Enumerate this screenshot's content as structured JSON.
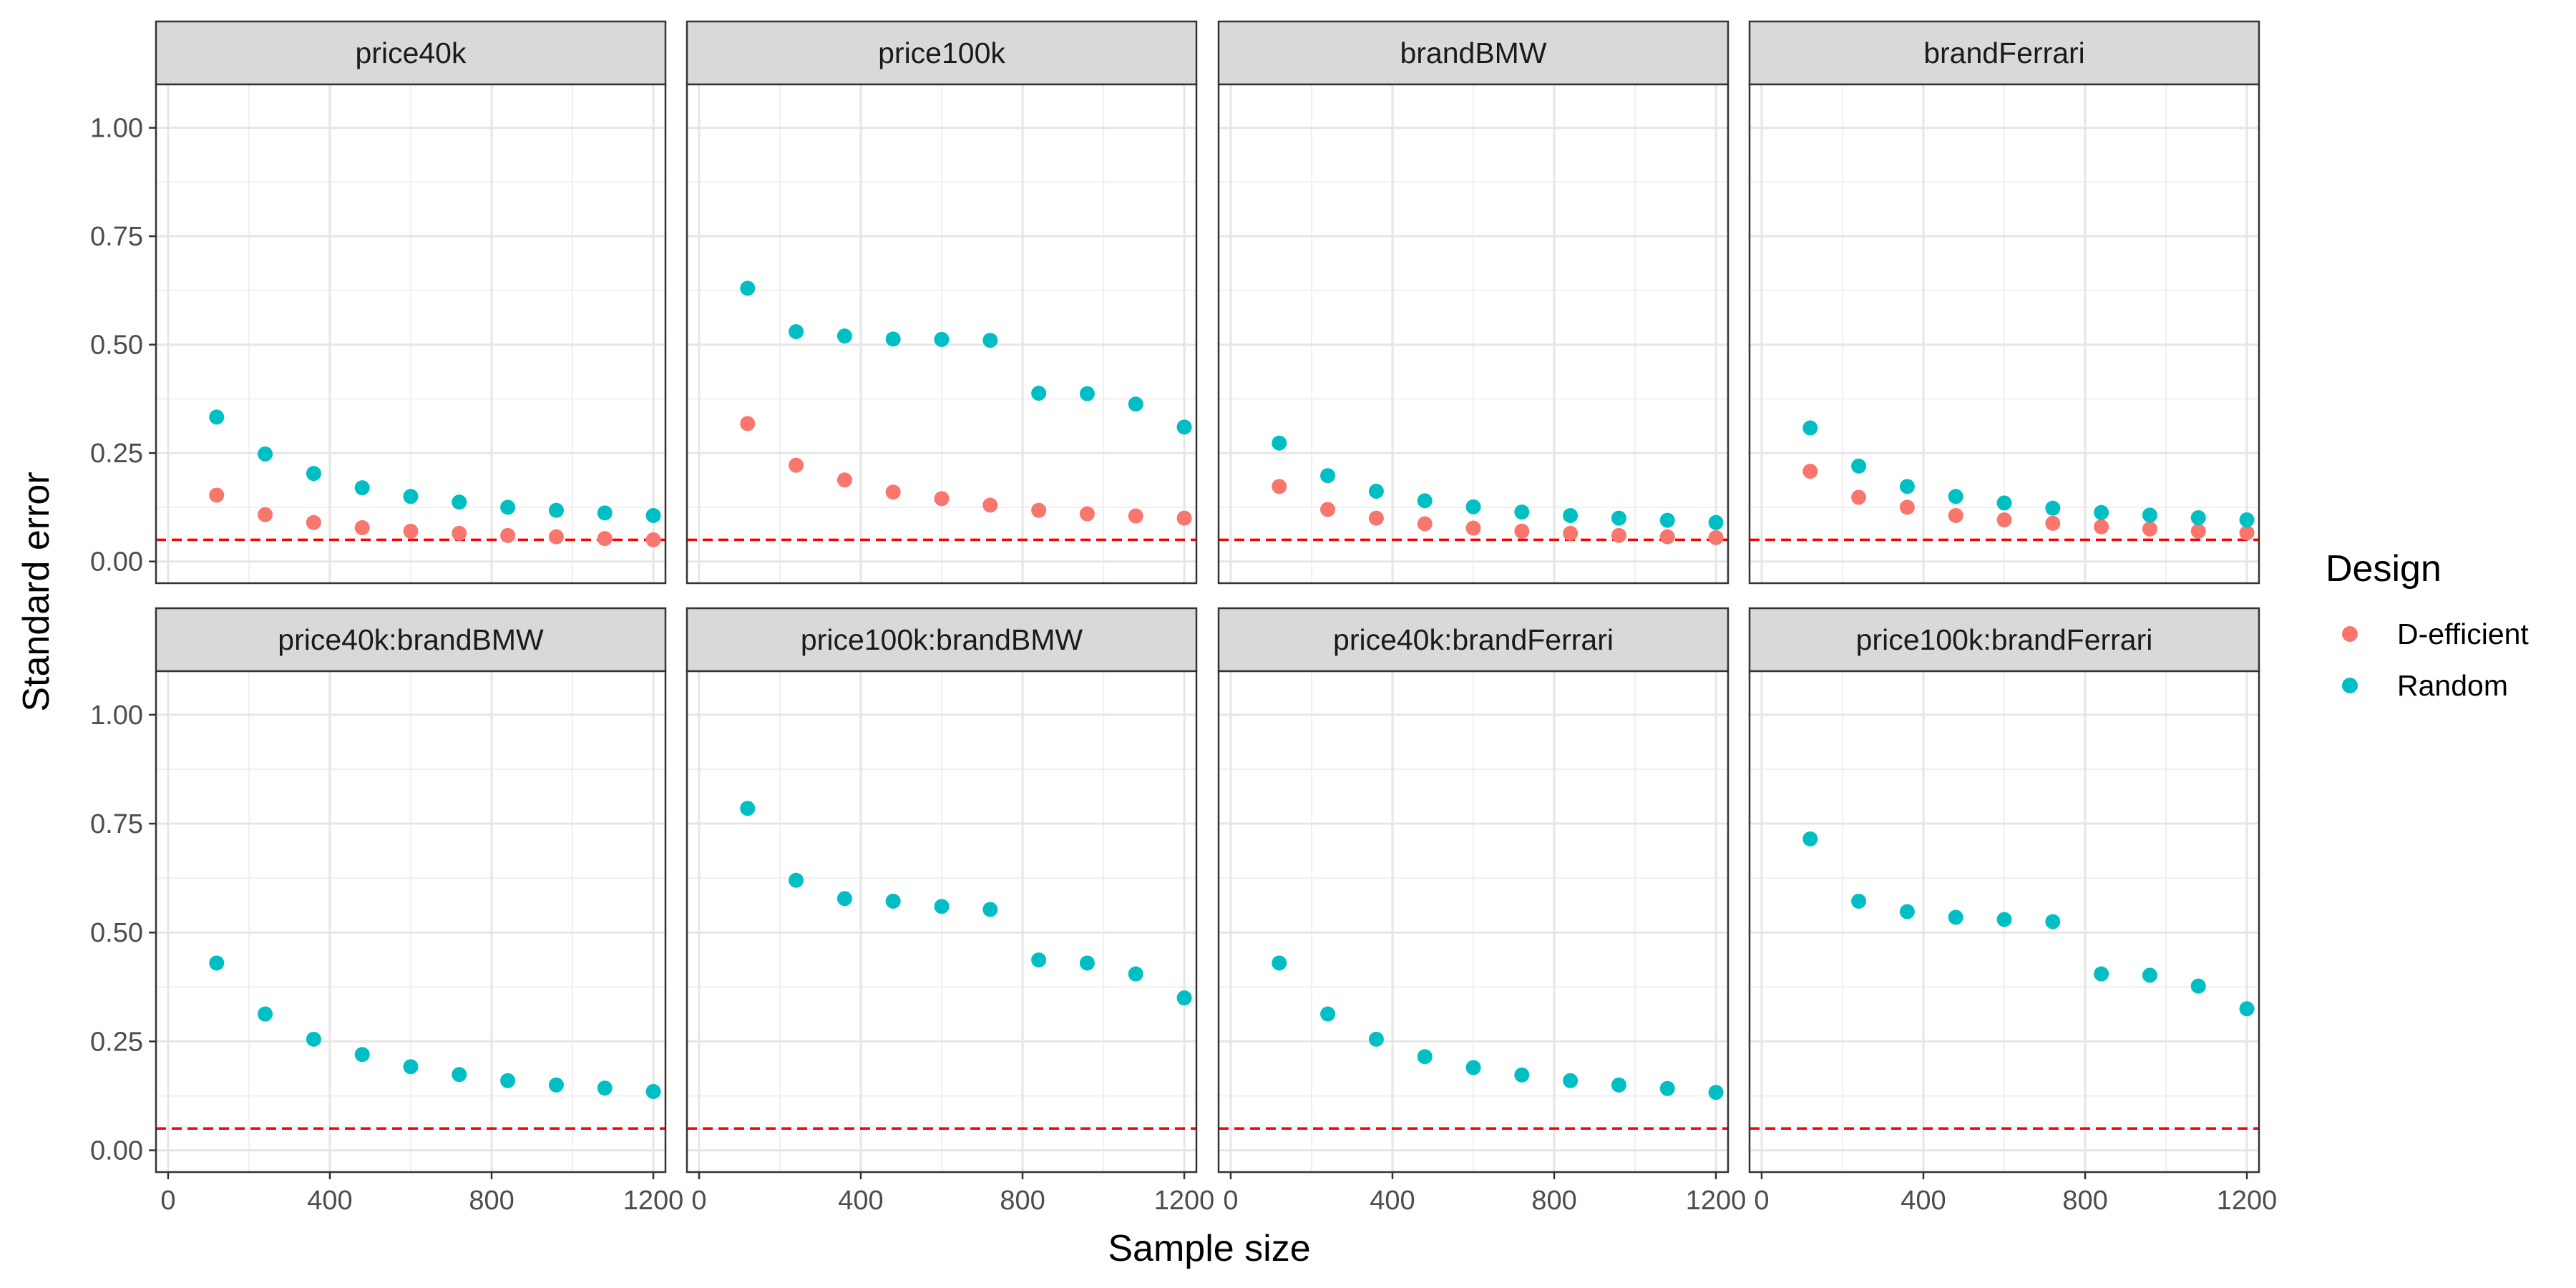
{
  "chart_data": {
    "type": "scatter",
    "xlabel": "Sample size",
    "ylabel": "Standard error",
    "xlim": [
      -30,
      1230
    ],
    "ylim": [
      -0.05,
      1.1
    ],
    "x_ticks": [
      0,
      400,
      800,
      1200
    ],
    "x_tick_labels": [
      "0",
      "400",
      "800",
      "1200"
    ],
    "y_ticks": [
      0,
      0.25,
      0.5,
      0.75,
      1.0
    ],
    "y_tick_labels": [
      "0.00",
      "0.25",
      "0.50",
      "0.75",
      "1.00"
    ],
    "reference_line": {
      "y": 0.05,
      "color": "#ff0000",
      "style": "dashed"
    },
    "grid": true,
    "legend": {
      "title": "Design",
      "position": "right",
      "entries": [
        {
          "label": "D-efficient",
          "color": "#F8766D"
        },
        {
          "label": "Random",
          "color": "#00BFC4"
        }
      ]
    },
    "x": [
      120,
      240,
      360,
      480,
      600,
      720,
      840,
      960,
      1080,
      1200
    ],
    "facets": [
      {
        "title": "price40k",
        "series": [
          {
            "name": "D-efficient",
            "values": [
              0.153,
              0.108,
              0.09,
              0.078,
              0.07,
              0.065,
              0.06,
              0.057,
              0.053,
              0.05
            ]
          },
          {
            "name": "Random",
            "values": [
              0.333,
              0.248,
              0.203,
              0.17,
              0.15,
              0.137,
              0.125,
              0.118,
              0.112,
              0.106
            ]
          }
        ]
      },
      {
        "title": "price100k",
        "series": [
          {
            "name": "D-efficient",
            "values": [
              0.318,
              0.222,
              0.188,
              0.16,
              0.145,
              0.13,
              0.118,
              0.11,
              0.105,
              0.1
            ]
          },
          {
            "name": "Random",
            "values": [
              0.63,
              0.53,
              0.52,
              0.513,
              0.512,
              0.51,
              0.388,
              0.387,
              0.363,
              0.31
            ]
          }
        ]
      },
      {
        "title": "brandBMW",
        "series": [
          {
            "name": "D-efficient",
            "values": [
              0.173,
              0.12,
              0.1,
              0.087,
              0.077,
              0.07,
              0.065,
              0.06,
              0.057,
              0.055
            ]
          },
          {
            "name": "Random",
            "values": [
              0.273,
              0.198,
              0.162,
              0.14,
              0.126,
              0.114,
              0.106,
              0.1,
              0.095,
              0.09
            ]
          }
        ]
      },
      {
        "title": "brandFerrari",
        "series": [
          {
            "name": "D-efficient",
            "values": [
              0.208,
              0.148,
              0.125,
              0.106,
              0.096,
              0.088,
              0.08,
              0.075,
              0.07,
              0.066
            ]
          },
          {
            "name": "Random",
            "values": [
              0.308,
              0.22,
              0.173,
              0.15,
              0.135,
              0.123,
              0.113,
              0.107,
              0.101,
              0.096
            ]
          }
        ]
      },
      {
        "title": "price40k:brandBMW",
        "series": [
          {
            "name": "Random",
            "values": [
              0.43,
              0.313,
              0.255,
              0.22,
              0.192,
              0.174,
              0.16,
              0.15,
              0.143,
              0.135
            ]
          }
        ]
      },
      {
        "title": "price100k:brandBMW",
        "series": [
          {
            "name": "Random",
            "values": [
              0.785,
              0.62,
              0.578,
              0.572,
              0.56,
              0.553,
              0.437,
              0.43,
              0.405,
              0.35
            ]
          }
        ]
      },
      {
        "title": "price40k:brandFerrari",
        "series": [
          {
            "name": "Random",
            "values": [
              0.43,
              0.313,
              0.255,
              0.215,
              0.19,
              0.173,
              0.16,
              0.15,
              0.142,
              0.133
            ]
          }
        ]
      },
      {
        "title": "price100k:brandFerrari",
        "series": [
          {
            "name": "Random",
            "values": [
              0.715,
              0.572,
              0.548,
              0.535,
              0.53,
              0.525,
              0.405,
              0.402,
              0.377,
              0.325
            ]
          }
        ]
      }
    ]
  }
}
